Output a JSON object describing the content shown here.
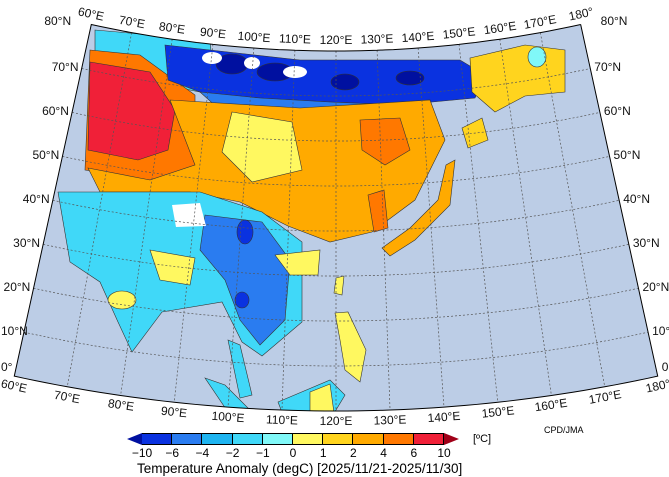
{
  "map": {
    "projection": "conic",
    "ocean_color": "#bccde6",
    "meridians": [
      60,
      70,
      80,
      90,
      100,
      110,
      120,
      130,
      140,
      150,
      160,
      170,
      180
    ],
    "parallels": [
      0,
      10,
      20,
      30,
      40,
      50,
      60,
      70,
      80
    ],
    "top_lon_labels": [
      "60°E",
      "70°E",
      "80°E",
      "90°E",
      "100°E",
      "110°E",
      "120°E",
      "130°E",
      "140°E",
      "150°E",
      "160°E",
      "170°E",
      "180°"
    ],
    "bottom_lon_labels": [
      "60°E",
      "70°E",
      "80°E",
      "90°E",
      "100°E",
      "110°E",
      "120°E",
      "130°E",
      "140°E",
      "150°E",
      "160°E",
      "170°E",
      "180°"
    ],
    "left_lat_labels": [
      "80°N",
      "70°N",
      "60°N",
      "50°N",
      "40°N",
      "30°N",
      "20°N",
      "10°N",
      "0°"
    ],
    "right_lat_labels": [
      "80°N",
      "70°N",
      "60°N",
      "50°N",
      "40°N",
      "30°N",
      "20°N",
      "10°N",
      "0°"
    ],
    "missing_color": "#ffffff"
  },
  "colorbar": {
    "ticks": [
      "−10",
      "−6",
      "−4",
      "−2",
      "−1",
      "0",
      "1",
      "2",
      "4",
      "6",
      "10"
    ],
    "colors": [
      "#0010a0",
      "#0a32e0",
      "#2a7cf0",
      "#1eb4f0",
      "#40d8f8",
      "#80f8f8",
      "#fff860",
      "#ffd41e",
      "#ffaa00",
      "#ff7800",
      "#f02038",
      "#a00018"
    ],
    "unit": "[ºC]",
    "title": "Temperature Anomaly (degC) [2025/11/21-2025/11/30]"
  },
  "credit": "CPD/JMA"
}
